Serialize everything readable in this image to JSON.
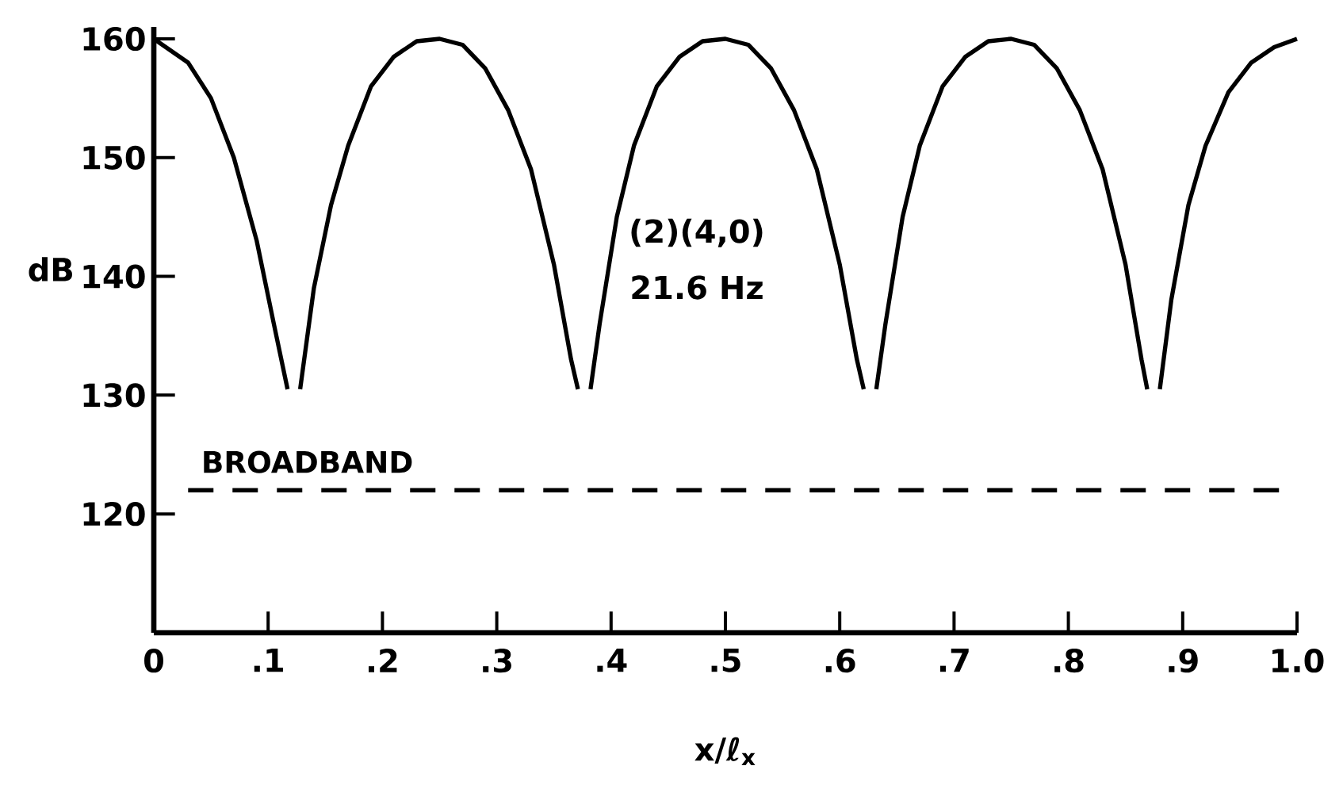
{
  "chart_data": {
    "type": "line",
    "xlabel": "x/ℓ$_{x}$",
    "ylabel": "dB",
    "x": [
      0,
      0.03,
      0.05,
      0.07,
      0.09,
      0.105,
      0.117,
      0.122,
      0.128,
      0.14,
      0.155,
      0.17,
      0.19,
      0.21,
      0.23,
      0.25,
      0.27,
      0.29,
      0.31,
      0.33,
      0.35,
      0.365,
      0.371,
      0.376,
      0.382,
      0.39,
      0.405,
      0.42,
      0.44,
      0.46,
      0.48,
      0.5,
      0.52,
      0.54,
      0.56,
      0.58,
      0.6,
      0.615,
      0.621,
      0.626,
      0.632,
      0.64,
      0.655,
      0.67,
      0.69,
      0.71,
      0.73,
      0.75,
      0.77,
      0.79,
      0.81,
      0.83,
      0.85,
      0.864,
      0.869,
      0.874,
      0.88,
      0.89,
      0.905,
      0.92,
      0.94,
      0.96,
      0.98,
      1.0
    ],
    "series": [
      {
        "color": "#000000",
        "values": [
          160,
          158,
          155,
          150,
          143,
          136,
          130.5,
          null,
          130.5,
          139,
          146,
          151,
          156,
          158.5,
          159.8,
          160,
          159.5,
          157.5,
          154,
          149,
          141,
          133,
          130.5,
          null,
          130.5,
          136,
          145,
          151,
          156,
          158.5,
          159.8,
          160,
          159.5,
          157.5,
          154,
          149,
          141,
          133,
          130.5,
          null,
          130.5,
          136,
          145,
          151,
          156,
          158.5,
          159.8,
          160,
          159.5,
          157.5,
          154,
          149,
          141,
          133,
          130.5,
          null,
          130.5,
          138,
          146,
          151,
          155.5,
          158,
          159.3,
          160
        ]
      }
    ],
    "xlim": [
      0,
      1
    ],
    "ylim": [
      110,
      161
    ],
    "xticks": [
      0,
      {
        "value": 0.1,
        "label": ".1"
      },
      {
        "value": 0.2,
        "label": ".2"
      },
      {
        "value": 0.3,
        "label": ".3"
      },
      {
        "value": 0.4,
        "label": ".4"
      },
      {
        "value": 0.5,
        "label": ".5"
      },
      {
        "value": 0.6,
        "label": ".6"
      },
      {
        "value": 0.7,
        "label": ".7"
      },
      {
        "value": 0.8,
        "label": ".8"
      },
      {
        "value": 0.9,
        "label": ".9"
      },
      {
        "value": 1,
        "label": "1.0"
      }
    ],
    "yticks": [
      120,
      130,
      140,
      150,
      160
    ],
    "ref_lines": [
      {
        "axis": "y",
        "value": 122,
        "label": "BROADBAND",
        "line_style": "dashed",
        "color": "#000000"
      }
    ],
    "annotations": [
      "(2)(4,0)",
      "21.6 Hz"
    ],
    "grid": false,
    "marker": "none",
    "line_style": "solid"
  }
}
